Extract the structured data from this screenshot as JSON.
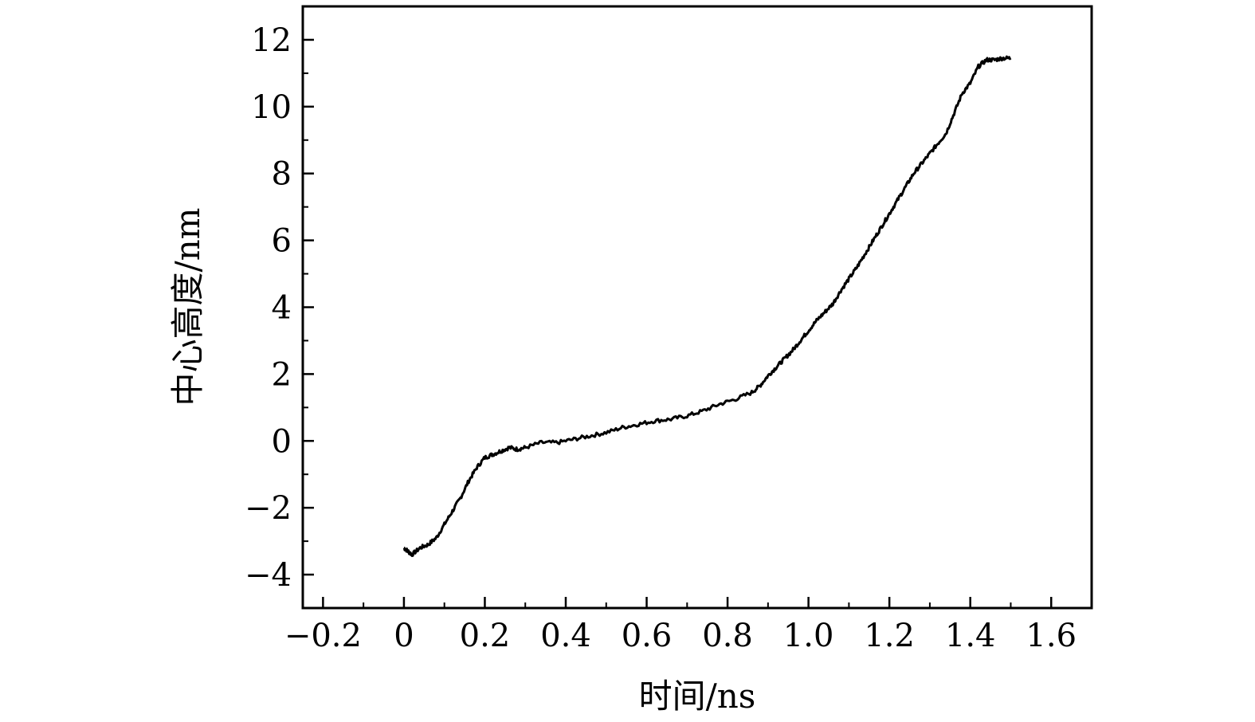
{
  "chart_data": {
    "type": "line",
    "title": "",
    "xlabel": "时间/ns",
    "ylabel": "中心高度/nm",
    "xlim": [
      -0.25,
      1.7
    ],
    "ylim": [
      -5,
      13
    ],
    "x_ticks": [
      -0.2,
      0,
      0.2,
      0.4,
      0.6,
      0.8,
      1.0,
      1.2,
      1.4,
      1.6
    ],
    "x_tick_labels": [
      "−0.2",
      "0",
      "0.2",
      "0.4",
      "0.6",
      "0.8",
      "1.0",
      "1.2",
      "1.4",
      "1.6"
    ],
    "y_ticks": [
      -4,
      -2,
      0,
      2,
      4,
      6,
      8,
      10,
      12
    ],
    "y_tick_labels": [
      "−4",
      "−2",
      "0",
      "2",
      "4",
      "6",
      "8",
      "10",
      "12"
    ],
    "grid": false,
    "legend": "none",
    "line_color": "#000000",
    "series": [
      {
        "x": [
          0.0,
          0.01,
          0.02,
          0.04,
          0.06,
          0.08,
          0.1,
          0.12,
          0.14,
          0.16,
          0.18,
          0.2,
          0.22,
          0.24,
          0.26,
          0.28,
          0.3,
          0.34,
          0.38,
          0.42,
          0.46,
          0.5,
          0.54,
          0.58,
          0.62,
          0.66,
          0.7,
          0.74,
          0.78,
          0.82,
          0.86,
          0.88,
          0.9,
          0.92,
          0.94,
          0.96,
          0.98,
          1.0,
          1.02,
          1.04,
          1.06,
          1.08,
          1.1,
          1.12,
          1.14,
          1.16,
          1.18,
          1.2,
          1.22,
          1.24,
          1.26,
          1.28,
          1.3,
          1.32,
          1.34,
          1.36,
          1.38,
          1.4,
          1.42,
          1.44,
          1.46,
          1.48,
          1.5
        ],
        "y": [
          -3.2,
          -3.3,
          -3.4,
          -3.2,
          -3.1,
          -2.9,
          -2.5,
          -2.1,
          -1.7,
          -1.2,
          -0.8,
          -0.5,
          -0.4,
          -0.3,
          -0.2,
          -0.25,
          -0.2,
          -0.05,
          -0.05,
          0.05,
          0.15,
          0.25,
          0.4,
          0.5,
          0.6,
          0.65,
          0.75,
          0.9,
          1.1,
          1.25,
          1.45,
          1.65,
          1.95,
          2.2,
          2.45,
          2.7,
          3.0,
          3.3,
          3.6,
          3.85,
          4.1,
          4.5,
          4.85,
          5.2,
          5.6,
          6.0,
          6.4,
          6.8,
          7.2,
          7.6,
          8.0,
          8.3,
          8.6,
          8.9,
          9.2,
          9.8,
          10.4,
          10.7,
          11.2,
          11.4,
          11.4,
          11.45,
          11.45
        ]
      }
    ]
  }
}
